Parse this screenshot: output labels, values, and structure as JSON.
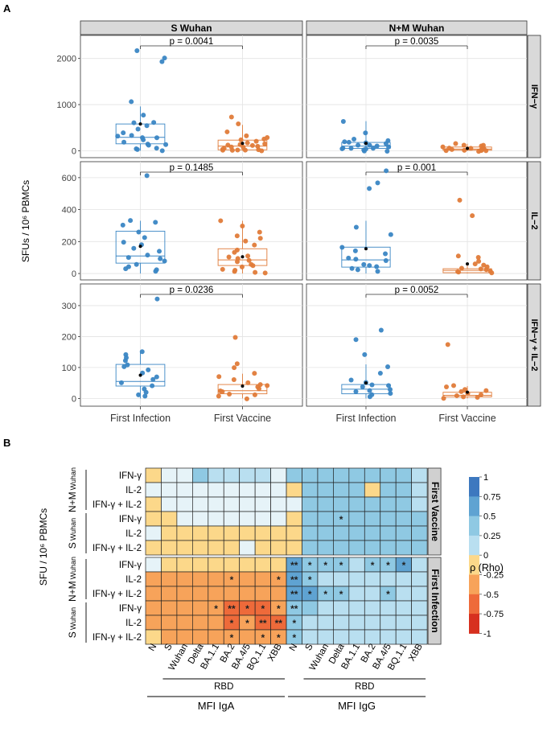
{
  "panel_a": {
    "letter": "A",
    "ylabel": "SFUs / 10⁶ PBMCs",
    "column_headers": [
      "S Wuhan",
      "N+M Wuhan"
    ],
    "row_headers": [
      "IFN−γ",
      "IL−2",
      "IFN−γ + IL−2"
    ],
    "groups": [
      "First Infection",
      "First Vaccine"
    ],
    "colors": {
      "First Infection": "#3a86c4",
      "First Vaccine": "#e07b39"
    },
    "chart_data": [
      {
        "type": "box",
        "row": "IFN−γ",
        "col": "S Wuhan",
        "ylim": [
          -150,
          2500
        ],
        "yticks": [
          0,
          1000,
          2000
        ],
        "p_value": "p = 0.0041",
        "boxes": [
          {
            "group": "First Infection",
            "q1": 150,
            "median": 290,
            "q3": 580,
            "whisker_low": 0,
            "whisker_high": 960,
            "mean": 580
          },
          {
            "group": "First Vaccine",
            "q1": 20,
            "median": 100,
            "q3": 230,
            "whisker_low": 0,
            "whisker_high": 560,
            "mean": 160
          }
        ],
        "points": [
          [
            1930,
            320,
            760,
            600,
            470,
            560,
            400,
            320,
            300,
            2020,
            280,
            200,
            130,
            60,
            20,
            10,
            2170,
            150,
            1060,
            600,
            230,
            120,
            25
          ],
          [
            720,
            600,
            420,
            320,
            300,
            250,
            240,
            200,
            180,
            150,
            140,
            120,
            100,
            90,
            80,
            60,
            40,
            30,
            25,
            20,
            15,
            10,
            5,
            0
          ]
        ]
      },
      {
        "type": "box",
        "row": "IFN−γ",
        "col": "N+M Wuhan",
        "ylim": [
          -150,
          2500
        ],
        "yticks": [
          0,
          1000,
          2000
        ],
        "p_value": "p = 0.0035",
        "boxes": [
          {
            "group": "First Infection",
            "q1": 50,
            "median": 100,
            "q3": 180,
            "whisker_low": 0,
            "whisker_high": 640,
            "mean": 160
          },
          {
            "group": "First Vaccine",
            "q1": 10,
            "median": 35,
            "q3": 80,
            "whisker_low": 0,
            "whisker_high": 150,
            "mean": 50
          }
        ],
        "points": [
          [
            640,
            380,
            260,
            220,
            200,
            180,
            160,
            150,
            120,
            100,
            90,
            80,
            70,
            60,
            50,
            40,
            30,
            20,
            10,
            5
          ],
          [
            150,
            120,
            100,
            90,
            80,
            70,
            60,
            50,
            40,
            35,
            30,
            25,
            20,
            15,
            10,
            5,
            0
          ]
        ]
      },
      {
        "type": "box",
        "row": "IL−2",
        "col": "S Wuhan",
        "ylim": [
          -40,
          700
        ],
        "yticks": [
          0,
          200,
          400,
          600
        ],
        "p_value": "p = 0.1485",
        "boxes": [
          {
            "group": "First Infection",
            "q1": 65,
            "median": 110,
            "q3": 265,
            "whisker_low": 0,
            "whisker_high": 330,
            "mean": 170
          },
          {
            "group": "First Vaccine",
            "q1": 50,
            "median": 85,
            "q3": 155,
            "whisker_low": 0,
            "whisker_high": 330,
            "mean": 105
          }
        ],
        "points": [
          [
            615,
            330,
            320,
            300,
            260,
            230,
            200,
            180,
            160,
            140,
            120,
            100,
            90,
            80,
            60,
            40,
            30,
            20,
            10
          ],
          [
            330,
            300,
            260,
            240,
            220,
            200,
            180,
            150,
            130,
            110,
            100,
            90,
            80,
            70,
            60,
            50,
            40,
            30,
            20,
            10,
            5,
            0
          ]
        ]
      },
      {
        "type": "box",
        "row": "IL−2",
        "col": "N+M Wuhan",
        "ylim": [
          -40,
          700
        ],
        "yticks": [
          0,
          200,
          400,
          600
        ],
        "p_value": "p = 0.001",
        "boxes": [
          {
            "group": "First Infection",
            "q1": 40,
            "median": 85,
            "q3": 165,
            "whisker_low": 0,
            "whisker_high": 330,
            "mean": 155
          },
          {
            "group": "First Vaccine",
            "q1": 5,
            "median": 20,
            "q3": 30,
            "whisker_low": 0,
            "whisker_high": 60,
            "mean": 60
          }
        ],
        "points": [
          [
            645,
            570,
            530,
            290,
            240,
            160,
            140,
            120,
            100,
            90,
            80,
            60,
            50,
            40,
            30,
            20,
            10
          ],
          [
            455,
            365,
            110,
            100,
            80,
            60,
            50,
            40,
            30,
            25,
            20,
            15,
            10,
            5,
            0
          ]
        ]
      },
      {
        "type": "box",
        "row": "IFN−γ + IL−2",
        "col": "S Wuhan",
        "ylim": [
          -25,
          370
        ],
        "yticks": [
          0,
          100,
          200,
          300
        ],
        "p_value": "p = 0.0236",
        "boxes": [
          {
            "group": "First Infection",
            "q1": 40,
            "median": 55,
            "q3": 110,
            "whisker_low": 0,
            "whisker_high": 150,
            "mean": 75
          },
          {
            "group": "First Vaccine",
            "q1": 15,
            "median": 25,
            "q3": 45,
            "whisker_low": 0,
            "whisker_high": 80,
            "mean": 40
          }
        ],
        "points": [
          [
            320,
            150,
            140,
            130,
            120,
            110,
            100,
            90,
            80,
            70,
            60,
            50,
            40,
            30,
            20,
            10,
            5
          ],
          [
            195,
            110,
            100,
            80,
            70,
            60,
            50,
            45,
            40,
            35,
            30,
            25,
            20,
            15,
            10,
            5,
            0
          ]
        ]
      },
      {
        "type": "box",
        "row": "IFN−γ + IL−2",
        "col": "N+M Wuhan",
        "ylim": [
          -25,
          370
        ],
        "yticks": [
          0,
          100,
          200,
          300
        ],
        "p_value": "p = 0.0052",
        "boxes": [
          {
            "group": "First Infection",
            "q1": 15,
            "median": 30,
            "q3": 45,
            "whisker_low": 0,
            "whisker_high": 110,
            "mean": 50
          },
          {
            "group": "First Vaccine",
            "q1": 5,
            "median": 10,
            "q3": 20,
            "whisker_low": 0,
            "whisker_high": 40,
            "mean": 20
          }
        ],
        "points": [
          [
            220,
            190,
            140,
            100,
            80,
            60,
            50,
            45,
            40,
            35,
            30,
            25,
            20,
            15,
            10,
            5
          ],
          [
            175,
            40,
            35,
            30,
            25,
            20,
            15,
            10,
            8,
            5,
            3,
            0
          ]
        ]
      }
    ]
  },
  "panel_b": {
    "letter": "B",
    "ylabel": "SFU / 10⁶ PBMCs",
    "facets": [
      "First Vaccine",
      "First Infection"
    ],
    "row_labels": [
      "IFN-γ",
      "IL-2",
      "IFN-γ + IL-2",
      "IFN-γ",
      "IL-2",
      "IFN-γ + IL-2"
    ],
    "row_group_labels": [
      {
        "main": "N+M",
        "sub": "Wuhan"
      },
      {
        "main": "S",
        "sub": "Wuhan"
      }
    ],
    "columns": [
      "N",
      "S",
      "Wuhan",
      "Delta",
      "BA.1.1",
      "BA.2",
      "BA.4/5",
      "BQ.1.1",
      "XBB",
      "N",
      "S",
      "Wuhan",
      "Delta",
      "BA.1.1",
      "BA.2",
      "BA.4/5",
      "BQ.1.1",
      "XBB"
    ],
    "rbd_label": "RBD",
    "group_labels": [
      "MFI IgA",
      "MFI IgG"
    ],
    "legend": {
      "title": "ρ (Rho)",
      "ticks": [
        "1",
        "0.75",
        "0.5",
        "0.25",
        "0",
        "-0.25",
        "-0.5",
        "-0.75",
        "-1"
      ]
    },
    "chart_data": {
      "type": "heatmap",
      "color_scale": {
        "min": -1,
        "max": 1,
        "stops": [
          "#d7301f",
          "#ee6a3a",
          "#f7a35a",
          "#fcd88a",
          "#e6f3f8",
          "#b9dff0",
          "#8fc9e3",
          "#5fa3d2",
          "#3d78bf"
        ]
      },
      "facets": [
        {
          "name": "First Vaccine",
          "values": [
            [
              -0.2,
              0.1,
              0.1,
              0.4,
              0.15,
              0.15,
              0.3,
              0.3,
              0.1,
              0.4,
              0.4,
              0.4,
              0.4,
              0.4,
              0.4,
              0.4,
              0.4,
              0.3
            ],
            [
              0.05,
              0.05,
              0.05,
              0.05,
              0.05,
              0.05,
              0.05,
              0.05,
              0.1,
              -0.35,
              0.4,
              0.4,
              0.4,
              0.4,
              -0.2,
              0.4,
              0.4,
              0.3
            ],
            [
              -0.2,
              0.05,
              0.05,
              0.1,
              0.05,
              0.1,
              0.05,
              0.05,
              0.1,
              0.1,
              0.4,
              0.4,
              0.4,
              0.4,
              0.4,
              0.4,
              0.4,
              0.3
            ],
            [
              -0.3,
              -0.2,
              0.1,
              0.1,
              0.1,
              0.1,
              0.1,
              0.1,
              0.1,
              -0.2,
              0.4,
              0.4,
              0.5,
              0.4,
              0.4,
              0.4,
              0.4,
              0.4
            ],
            [
              0.1,
              -0.2,
              -0.2,
              -0.2,
              -0.2,
              -0.2,
              -0.2,
              -0.2,
              -0.2,
              -0.2,
              0.4,
              0.4,
              0.4,
              0.4,
              0.4,
              0.4,
              0.4,
              0.4
            ],
            [
              -0.2,
              -0.2,
              -0.2,
              -0.2,
              -0.2,
              -0.2,
              0.1,
              -0.2,
              -0.2,
              -0.2,
              0.4,
              0.4,
              0.4,
              0.4,
              0.4,
              0.4,
              0.4,
              0.4
            ]
          ],
          "stars": [
            [
              "",
              "",
              "",
              "",
              "",
              "",
              "",
              "",
              "",
              "",
              "",
              "",
              "",
              "",
              "",
              "",
              "",
              ""
            ],
            [
              "",
              "",
              "",
              "",
              "",
              "",
              "",
              "",
              "",
              "",
              "",
              "",
              "",
              "",
              "",
              "",
              "",
              ""
            ],
            [
              "",
              "",
              "",
              "",
              "",
              "",
              "",
              "",
              "",
              "",
              "",
              "",
              "",
              "",
              "",
              "",
              "",
              ""
            ],
            [
              "",
              "",
              "",
              "",
              "",
              "",
              "",
              "",
              "",
              "",
              "",
              "",
              "*",
              "",
              "",
              "",
              "",
              ""
            ],
            [
              "",
              "",
              "",
              "",
              "",
              "",
              "",
              "",
              "",
              "",
              "",
              "",
              "",
              "",
              "",
              "",
              "",
              ""
            ],
            [
              "",
              "",
              "",
              "",
              "",
              "",
              "",
              "",
              "",
              "",
              "",
              "",
              "",
              "",
              "",
              "",
              "",
              ""
            ]
          ]
        },
        {
          "name": "First Infection",
          "values": [
            [
              0.1,
              -0.25,
              -0.25,
              -0.25,
              -0.25,
              -0.25,
              -0.25,
              -0.25,
              -0.25,
              0.75,
              0.5,
              0.5,
              0.5,
              0.3,
              0.5,
              0.5,
              0.65,
              0.3
            ],
            [
              -0.4,
              -0.4,
              -0.4,
              -0.4,
              -0.4,
              -0.6,
              -0.4,
              -0.4,
              -0.4,
              0.7,
              0.5,
              0.3,
              0.3,
              0.3,
              0.3,
              0.3,
              0.3,
              0.3
            ],
            [
              -0.4,
              -0.4,
              -0.4,
              -0.4,
              -0.4,
              -0.5,
              -0.5,
              -0.5,
              -0.5,
              0.7,
              0.65,
              0.5,
              0.6,
              0.3,
              0.3,
              0.5,
              0.3,
              0.3
            ],
            [
              -0.4,
              -0.4,
              -0.4,
              -0.4,
              -0.5,
              -0.7,
              -0.7,
              -0.7,
              -0.6,
              0.6,
              0.5,
              0.3,
              0.3,
              0.3,
              0.3,
              0.3,
              0.3,
              0.2
            ],
            [
              -0.4,
              -0.4,
              -0.4,
              -0.4,
              -0.5,
              -0.7,
              -0.6,
              -0.7,
              -0.7,
              0.5,
              0.3,
              0.3,
              0.3,
              0.3,
              0.3,
              0.3,
              0.2,
              0.2
            ],
            [
              -0.3,
              -0.4,
              -0.4,
              -0.4,
              -0.5,
              -0.6,
              -0.6,
              -0.6,
              -0.6,
              0.5,
              0.3,
              0.3,
              0.3,
              0.2,
              0.2,
              0.2,
              0.2,
              0.2
            ]
          ],
          "stars": [
            [
              "",
              "",
              "",
              "",
              "",
              "",
              "",
              "",
              "",
              "**",
              "*",
              "*",
              "*",
              "",
              "*",
              "*",
              "*",
              ""
            ],
            [
              "",
              "",
              "",
              "",
              "",
              "*",
              "",
              "",
              "*",
              "**",
              "*",
              "",
              "",
              "",
              "",
              "",
              "",
              ""
            ],
            [
              "",
              "",
              "",
              "",
              "",
              "",
              "",
              "",
              "",
              "**",
              "*",
              "*",
              "*",
              "",
              "",
              "*",
              "",
              ""
            ],
            [
              "",
              "",
              "",
              "",
              "*",
              "**",
              "*",
              "*",
              "*",
              "**",
              "",
              "",
              "",
              "",
              "",
              "",
              "",
              ""
            ],
            [
              "",
              "",
              "",
              "",
              "",
              "*",
              "*",
              "**",
              "**",
              "*",
              "",
              "",
              "",
              "",
              "",
              "",
              "",
              ""
            ],
            [
              "",
              "",
              "",
              "",
              "",
              "*",
              "",
              "*",
              "*",
              "*",
              "",
              "",
              "",
              "",
              "",
              "",
              "",
              ""
            ]
          ]
        }
      ]
    }
  }
}
